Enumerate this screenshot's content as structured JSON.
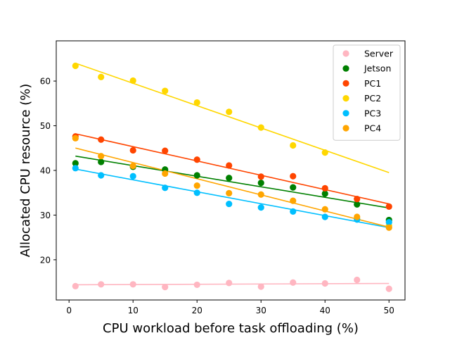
{
  "chart_data": {
    "type": "scatter",
    "title": "",
    "xlabel": "CPU workload before task offloading (%)",
    "ylabel": "Allocated CPU resource (%)",
    "xlim": [
      -2,
      52.5
    ],
    "ylim": [
      11,
      69
    ],
    "xticks": [
      0,
      10,
      20,
      30,
      40,
      50
    ],
    "yticks": [
      20,
      30,
      40,
      50,
      60
    ],
    "grid": false,
    "legend_position": "top-right",
    "x": [
      1,
      5,
      10,
      15,
      20,
      25,
      30,
      35,
      40,
      45,
      50
    ],
    "series": [
      {
        "name": "Server",
        "color": "#ffb6c1",
        "values": [
          14.1,
          14.5,
          14.5,
          13.9,
          14.4,
          14.8,
          14.0,
          14.9,
          14.7,
          15.5,
          13.5
        ],
        "fit": [
          14.4,
          14.7
        ]
      },
      {
        "name": "Jetson",
        "color": "#008000",
        "values": [
          41.6,
          41.9,
          40.8,
          40.2,
          38.9,
          38.3,
          37.2,
          36.2,
          34.8,
          32.4,
          28.9
        ],
        "fit": [
          43.2,
          31.6
        ]
      },
      {
        "name": "PC1",
        "color": "#ff4500",
        "values": [
          47.6,
          46.9,
          44.5,
          44.4,
          42.4,
          41.1,
          38.6,
          38.7,
          36.0,
          33.6,
          31.9
        ],
        "fit": [
          48.2,
          32.5
        ]
      },
      {
        "name": "PC2",
        "color": "#ffd700",
        "values": [
          63.4,
          60.9,
          60.1,
          57.8,
          55.2,
          53.1,
          49.6,
          45.6,
          44.0,
          29.2,
          27.6
        ],
        "fit": [
          64.0,
          39.5
        ]
      },
      {
        "name": "PC3",
        "color": "#00bfff",
        "values": [
          40.5,
          38.9,
          38.7,
          36.1,
          35.0,
          32.5,
          31.7,
          30.8,
          29.6,
          29.0,
          28.4
        ],
        "fit": [
          40.3,
          27.2
        ]
      },
      {
        "name": "PC4",
        "color": "#ffa500",
        "values": [
          47.2,
          43.2,
          41.0,
          39.3,
          36.6,
          34.9,
          34.6,
          33.2,
          31.3,
          29.6,
          27.2
        ],
        "fit": [
          45.0,
          27.3
        ]
      }
    ]
  }
}
